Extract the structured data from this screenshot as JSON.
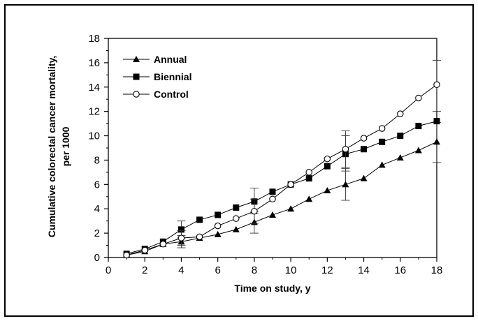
{
  "chart_data": {
    "type": "line",
    "title": "",
    "xlabel": "Time on study, y",
    "ylabel_line1": "Cumulative colorectal cancer mortality,",
    "ylabel_line2": "per 1000",
    "xlim": [
      0,
      18
    ],
    "ylim": [
      0,
      18
    ],
    "xticks": [
      "0",
      "2",
      "4",
      "6",
      "8",
      "10",
      "12",
      "14",
      "16",
      "18"
    ],
    "yticks": [
      "0",
      "2",
      "4",
      "6",
      "8",
      "10",
      "12",
      "14",
      "16",
      "18"
    ],
    "grid": false,
    "legend_position": "top-left",
    "x": [
      1,
      2,
      3,
      4,
      5,
      6,
      7,
      8,
      9,
      10,
      11,
      12,
      13,
      14,
      15,
      16,
      17,
      18
    ],
    "series": [
      {
        "name": "Annual",
        "marker": "triangle",
        "values": [
          0.2,
          0.5,
          1.1,
          1.3,
          1.6,
          1.9,
          2.3,
          2.9,
          3.5,
          4.0,
          4.8,
          5.5,
          6.0,
          6.5,
          7.6,
          8.2,
          8.8,
          9.5
        ],
        "error_bars": [
          {
            "x": 4,
            "y": 1.3,
            "low": 0.8,
            "high": 1.8
          },
          {
            "x": 8,
            "y": 2.9,
            "low": 2.0,
            "high": 3.8
          },
          {
            "x": 13,
            "y": 6.0,
            "low": 4.7,
            "high": 7.3
          },
          {
            "x": 18,
            "y": 9.5,
            "low": 7.8,
            "high": 11.1
          }
        ]
      },
      {
        "name": "Biennial",
        "marker": "square",
        "values": [
          0.3,
          0.7,
          1.3,
          2.3,
          3.1,
          3.5,
          4.1,
          4.6,
          5.4,
          6.0,
          6.5,
          7.5,
          8.5,
          8.9,
          9.5,
          10.0,
          10.8,
          11.2
        ],
        "error_bars": [
          {
            "x": 4,
            "y": 2.3,
            "low": 1.6,
            "high": 3.0
          },
          {
            "x": 8,
            "y": 4.6,
            "low": 3.6,
            "high": 5.7
          },
          {
            "x": 13,
            "y": 8.5,
            "low": 7.1,
            "high": 10.0
          }
        ]
      },
      {
        "name": "Control",
        "marker": "circle-open",
        "values": [
          0.2,
          0.6,
          1.1,
          1.6,
          1.7,
          2.6,
          3.2,
          3.8,
          4.8,
          6.0,
          7.0,
          8.1,
          8.9,
          9.8,
          10.6,
          11.8,
          13.1,
          14.2
        ],
        "error_bars": [
          {
            "x": 4,
            "y": 1.6,
            "low": 1.0,
            "high": 2.2
          },
          {
            "x": 8,
            "y": 3.8,
            "low": 2.8,
            "high": 4.8
          },
          {
            "x": 13,
            "y": 8.9,
            "low": 7.4,
            "high": 10.4
          },
          {
            "x": 18,
            "y": 14.2,
            "low": 12.0,
            "high": 16.2
          }
        ]
      }
    ]
  }
}
